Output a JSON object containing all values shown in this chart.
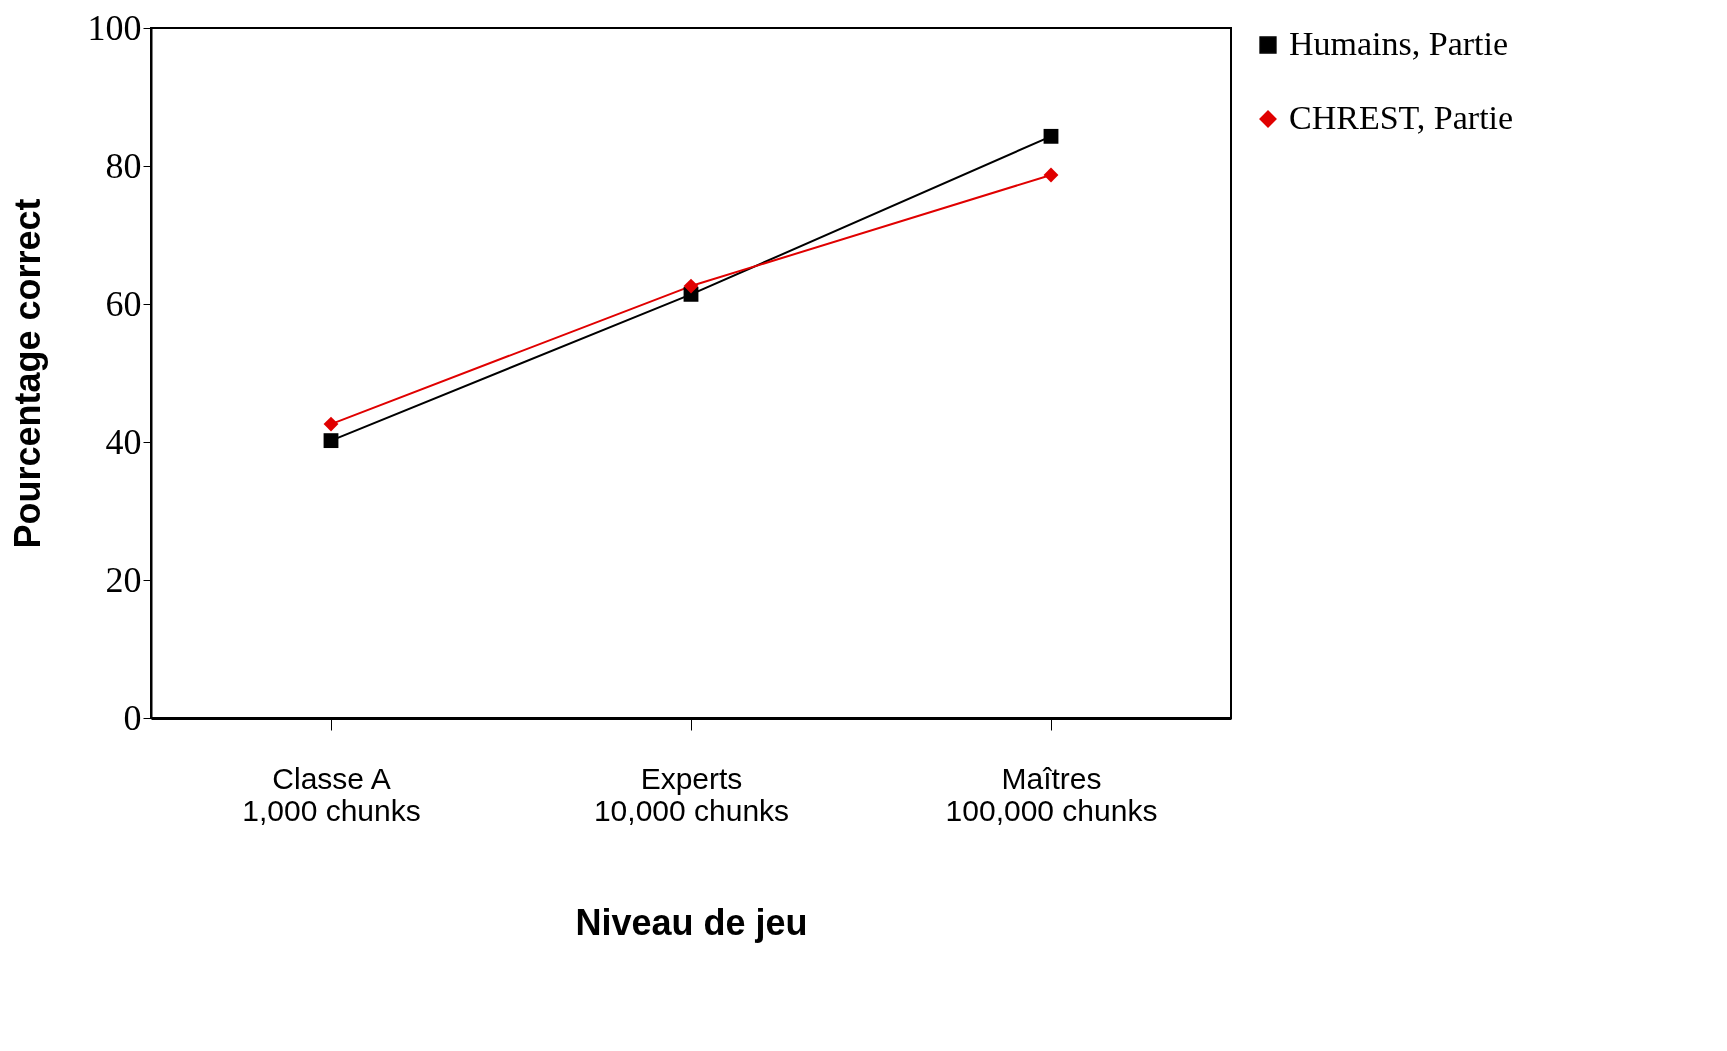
{
  "chart_data": {
    "type": "line",
    "xlabel": "Niveau de jeu",
    "ylabel": "Pourcentage correct",
    "categories": [
      "Classe A\n1,000 chunks",
      "Experts\n10,000 chunks",
      "Maîtres\n100,000 chunks"
    ],
    "series": [
      {
        "name": "Humains, Partie",
        "color": "#000000",
        "marker": "square",
        "values": [
          40.2,
          61.4,
          84.3
        ]
      },
      {
        "name": "CHREST, Partie",
        "color": "#e00000",
        "marker": "diamond",
        "values": [
          42.6,
          62.6,
          78.7
        ]
      }
    ],
    "ylim": [
      0,
      100
    ],
    "yticks": [
      0,
      20,
      40,
      60,
      80,
      100
    ],
    "grid": false,
    "legend": "right",
    "line_style": "solid"
  }
}
